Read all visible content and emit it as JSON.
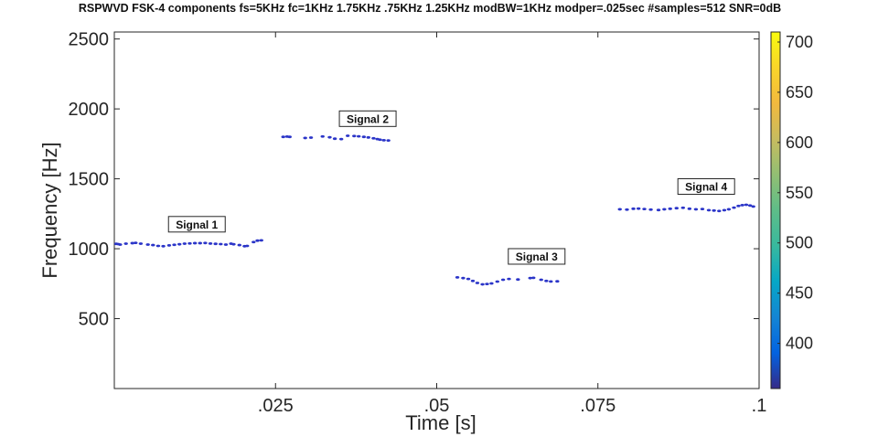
{
  "chart_data": {
    "type": "scatter",
    "title": "RSPWVD FSK-4 components fs=5KHz fc=1KHz 1.75KHz .75KHz 1.25KHz modBW=1KHz modper=.025sec #samples=512 SNR=0dB",
    "xlabel": "Time [s]",
    "ylabel": "Frequency [Hz]",
    "xlim": [
      0,
      0.1
    ],
    "ylim": [
      0,
      2550
    ],
    "x_ticks": [
      {
        "value": 0.025,
        "label": ".025"
      },
      {
        "value": 0.05,
        "label": ".05"
      },
      {
        "value": 0.075,
        "label": ".075"
      },
      {
        "value": 0.1,
        "label": ".1"
      }
    ],
    "y_ticks": [
      {
        "value": 500,
        "label": "500"
      },
      {
        "value": 1000,
        "label": "1000"
      },
      {
        "value": 1500,
        "label": "1500"
      },
      {
        "value": 2000,
        "label": "2000"
      },
      {
        "value": 2500,
        "label": "2500"
      }
    ],
    "grid": false,
    "marker_color": "#2b35c8",
    "colorbar": {
      "colormap": "parula",
      "range": [
        355,
        710
      ],
      "ticks": [
        "400",
        "450",
        "500",
        "550",
        "600",
        "650",
        "700"
      ],
      "tick_values": [
        400,
        450,
        500,
        550,
        600,
        650,
        700
      ]
    },
    "annotations": [
      {
        "text": "Signal 1",
        "x": 0.0128,
        "y": 1175
      },
      {
        "text": "Signal 2",
        "x": 0.0393,
        "y": 1930
      },
      {
        "text": "Signal 3",
        "x": 0.0655,
        "y": 945
      },
      {
        "text": "Signal 4",
        "x": 0.0918,
        "y": 1445
      }
    ],
    "series": [
      {
        "x": [
          0.0003,
          0.0006,
          0.0009,
          0.0018,
          0.0028,
          0.0033,
          0.0041,
          0.0052,
          0.006,
          0.0068,
          0.0076,
          0.0085,
          0.0093,
          0.0101,
          0.0109,
          0.0117,
          0.0125,
          0.0133,
          0.0141,
          0.0149,
          0.0157,
          0.0165,
          0.0173,
          0.0181,
          0.0185,
          0.0194,
          0.0202,
          0.0206,
          0.0216,
          0.0222,
          0.0228
        ],
        "y": [
          1035,
          1033,
          1030,
          1036,
          1040,
          1042,
          1036,
          1030,
          1026,
          1020,
          1018,
          1024,
          1028,
          1032,
          1036,
          1038,
          1040,
          1040,
          1041,
          1037,
          1035,
          1033,
          1030,
          1036,
          1032,
          1026,
          1018,
          1020,
          1048,
          1058,
          1060
        ]
      },
      {
        "x": [
          0.0262,
          0.0268,
          0.0272,
          0.0296,
          0.0305,
          0.0323,
          0.0334,
          0.0342,
          0.0352,
          0.0362,
          0.0372,
          0.0379,
          0.0387,
          0.0394,
          0.0402,
          0.0408,
          0.0412,
          0.0418,
          0.0425
        ],
        "y": [
          1800,
          1802,
          1800,
          1792,
          1795,
          1803,
          1797,
          1787,
          1784,
          1808,
          1806,
          1804,
          1800,
          1796,
          1790,
          1784,
          1780,
          1776,
          1774
        ]
      },
      {
        "x": [
          0.0532,
          0.0541,
          0.0549,
          0.0556,
          0.0563,
          0.0571,
          0.0578,
          0.0585,
          0.0594,
          0.0603,
          0.0612,
          0.0626,
          0.0645,
          0.065,
          0.0662,
          0.067,
          0.0677,
          0.0687
        ],
        "y": [
          795,
          790,
          784,
          770,
          755,
          745,
          748,
          752,
          765,
          778,
          784,
          780,
          790,
          792,
          778,
          770,
          766,
          767
        ]
      },
      {
        "x": [
          0.0784,
          0.0795,
          0.0805,
          0.0813,
          0.0822,
          0.0832,
          0.0844,
          0.0853,
          0.0862,
          0.0872,
          0.0882,
          0.0892,
          0.0902,
          0.0912,
          0.0922,
          0.093,
          0.0938,
          0.0946,
          0.0953,
          0.0961,
          0.0968,
          0.0974,
          0.098,
          0.0986,
          0.0991
        ],
        "y": [
          1282,
          1280,
          1286,
          1287,
          1284,
          1280,
          1277,
          1282,
          1286,
          1290,
          1293,
          1286,
          1282,
          1284,
          1276,
          1273,
          1270,
          1276,
          1282,
          1294,
          1306,
          1312,
          1314,
          1309,
          1302
        ]
      }
    ]
  }
}
